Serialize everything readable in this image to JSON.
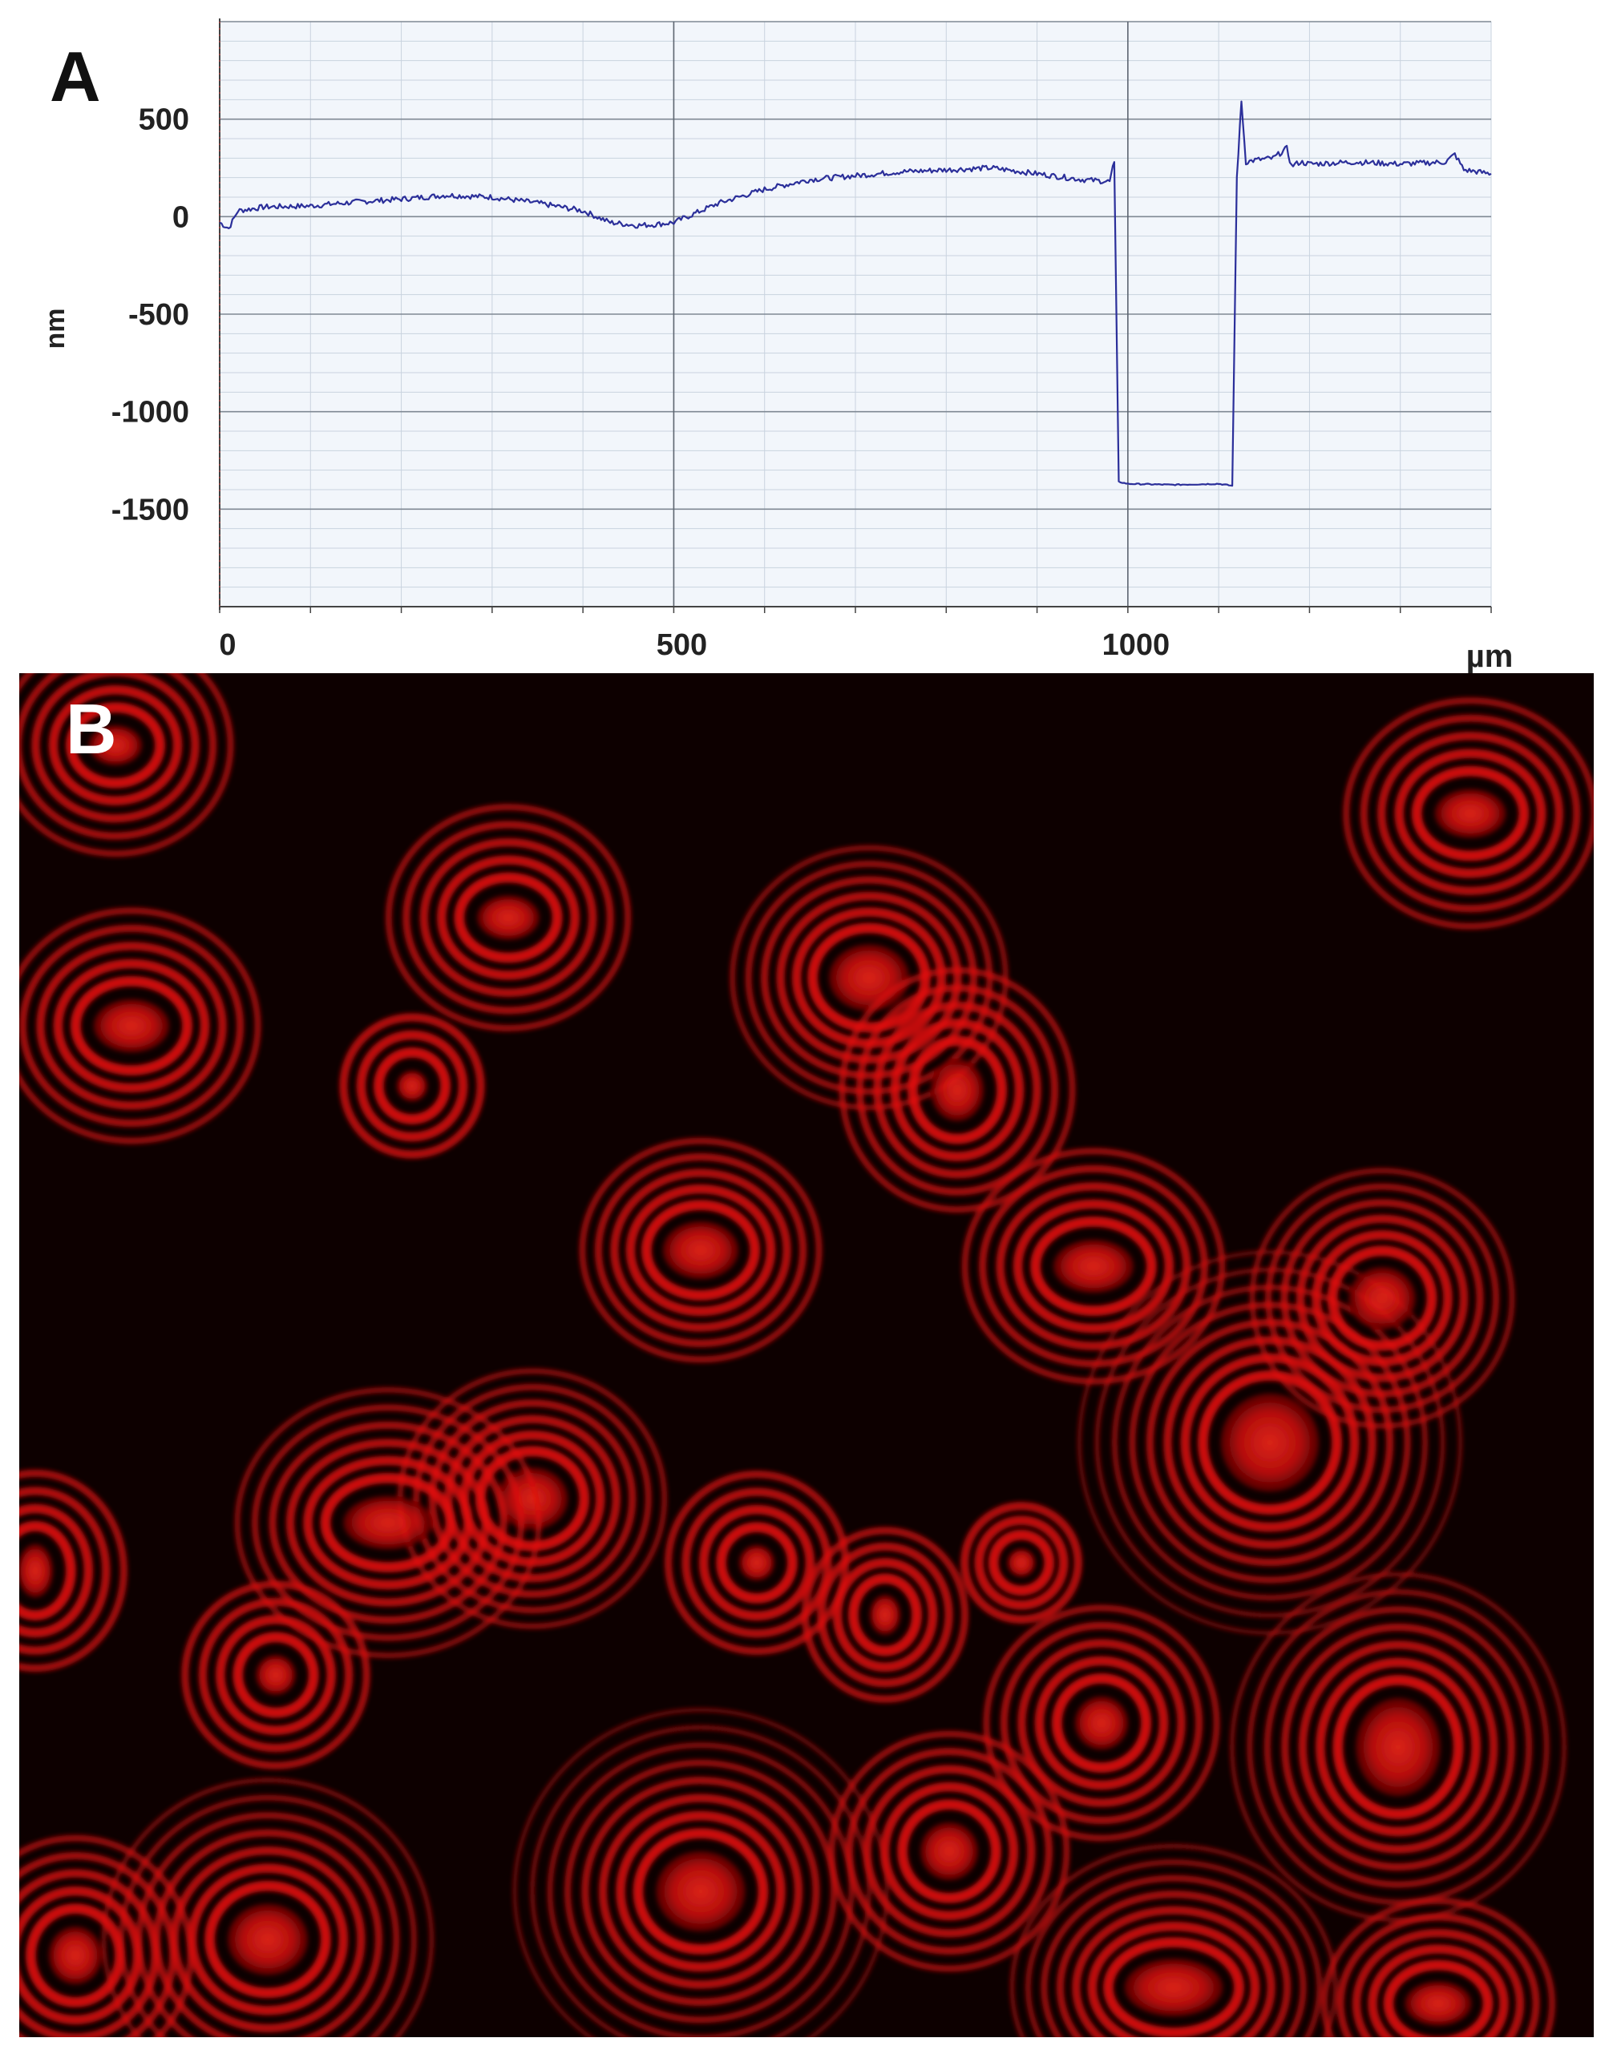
{
  "panels": {
    "a_label": "A",
    "b_label": "B"
  },
  "chart_data": {
    "type": "line",
    "title": "",
    "xlabel": "µm",
    "ylabel": "nm",
    "xlim": [
      0,
      1400
    ],
    "ylim": [
      -2000,
      1000
    ],
    "x_ticks": [
      {
        "value": 0,
        "label": "0"
      },
      {
        "value": 500,
        "label": "500"
      },
      {
        "value": 1000,
        "label": "1000"
      }
    ],
    "y_ticks": [
      {
        "value": 500,
        "label": "500"
      },
      {
        "value": 0,
        "label": "0"
      },
      {
        "value": -500,
        "label": "-500"
      },
      {
        "value": -1000,
        "label": "-1000"
      },
      {
        "value": -1500,
        "label": "-1500"
      }
    ],
    "grid": true,
    "line_color": "#2b2f9a",
    "series": [
      {
        "x": [
          0,
          10,
          20,
          50,
          100,
          150,
          200,
          250,
          300,
          350,
          400,
          430,
          460,
          480,
          500,
          520,
          550,
          600,
          650,
          700,
          750,
          800,
          850,
          900,
          950,
          980,
          985,
          990,
          1000,
          1050,
          1100,
          1115,
          1120,
          1125,
          1130,
          1140,
          1160,
          1175,
          1180,
          1190,
          1200,
          1250,
          1300,
          1350,
          1360,
          1370,
          1400
        ],
        "y": [
          -30,
          -60,
          30,
          50,
          55,
          75,
          90,
          110,
          100,
          70,
          30,
          -30,
          -45,
          -40,
          -30,
          10,
          70,
          140,
          190,
          210,
          230,
          240,
          250,
          220,
          190,
          180,
          280,
          -1360,
          -1370,
          -1375,
          -1370,
          -1380,
          200,
          590,
          280,
          290,
          300,
          350,
          260,
          280,
          270,
          280,
          270,
          280,
          320,
          240,
          220
        ]
      }
    ]
  },
  "micrograph": {
    "background_color": "#0d0000",
    "fringe_color": "#e31010",
    "content": "interference-fringe-pattern"
  }
}
